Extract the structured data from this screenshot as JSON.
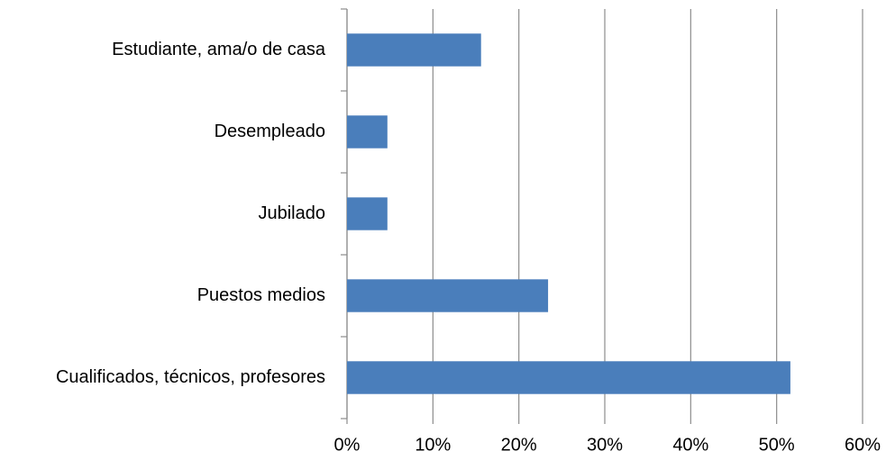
{
  "chart_data": {
    "type": "bar",
    "orientation": "horizontal",
    "categories": [
      "Estudiante, ama/o de casa",
      "Desempleado",
      "Jubilado",
      "Puestos medios",
      "Cualificados, técnicos, profesores"
    ],
    "values": [
      15.6,
      4.7,
      4.7,
      23.4,
      51.6
    ],
    "color": "#4a7ebb",
    "xlim": [
      0,
      60
    ],
    "xticks": [
      {
        "value": 0,
        "label": "0%"
      },
      {
        "value": 10,
        "label": "10%"
      },
      {
        "value": 20,
        "label": "20%"
      },
      {
        "value": 30,
        "label": "30%"
      },
      {
        "value": 40,
        "label": "40%"
      },
      {
        "value": 50,
        "label": "50%"
      },
      {
        "value": 60,
        "label": "60%"
      }
    ],
    "grid": true
  }
}
